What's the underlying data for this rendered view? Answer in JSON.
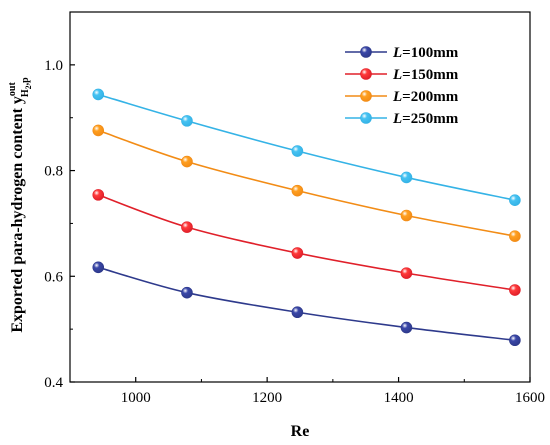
{
  "chart_data": {
    "type": "line",
    "xlabel": "Re",
    "ylabel": {
      "main": "Exported para-hydrogen content y",
      "superscript": "out",
      "subscript": "H",
      "subscript_sub": "2",
      "subscript_tail": ",p"
    },
    "xlim": [
      900,
      1600
    ],
    "ylim": [
      0.4,
      1.1
    ],
    "xticks": [
      1000,
      1200,
      1400,
      1600
    ],
    "yticks": [
      0.4,
      0.6,
      0.8,
      1.0
    ],
    "xtick_labels": [
      "1000",
      "1200",
      "1400",
      "1600"
    ],
    "ytick_labels": [
      "0.4",
      "0.6",
      "0.8",
      "1.0"
    ],
    "x": [
      943,
      1078,
      1246,
      1412,
      1577
    ],
    "legend_position": "top-right",
    "grid": false,
    "series": [
      {
        "name_var": "L",
        "name_val": "=100mm",
        "color": "#2e3a8c",
        "marker": "#3a47a8",
        "values": [
          0.617,
          0.569,
          0.532,
          0.503,
          0.479
        ]
      },
      {
        "name_var": "L",
        "name_val": "=150mm",
        "color": "#e0202a",
        "marker": "#ff3a3a",
        "values": [
          0.754,
          0.693,
          0.644,
          0.606,
          0.574
        ]
      },
      {
        "name_var": "L",
        "name_val": "=200mm",
        "color": "#f28c16",
        "marker": "#ff9f1f",
        "values": [
          0.876,
          0.817,
          0.762,
          0.715,
          0.676
        ]
      },
      {
        "name_var": "L",
        "name_val": "=250mm",
        "color": "#35b3e6",
        "marker": "#45c2f2",
        "values": [
          0.944,
          0.894,
          0.837,
          0.787,
          0.744
        ]
      }
    ]
  }
}
